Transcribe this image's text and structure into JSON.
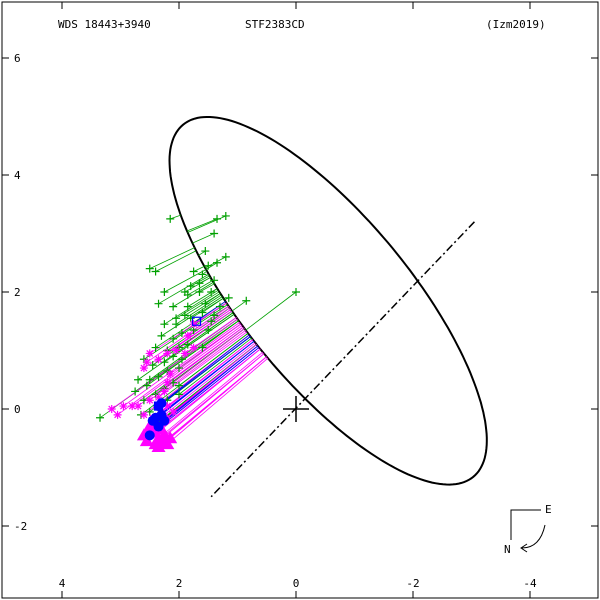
{
  "header": {
    "wds_id": "WDS 18443+3940",
    "discoverer": "STF2383CD",
    "reference": "(Izm2019)"
  },
  "compass": {
    "east_label": "E",
    "north_label": "N"
  },
  "colors": {
    "orbit": "#000000",
    "micrometer": "#00a000",
    "speckle": "#ff00ff",
    "interferometric": "#0000ff",
    "axes": "#000000"
  },
  "chart_data": {
    "type": "scatter",
    "title": "",
    "xlabel": "",
    "ylabel": "",
    "xlim": [
      -5.0,
      5.0
    ],
    "ylim": [
      -3.0,
      6.8
    ],
    "x_ticks": [
      -4,
      -2,
      0,
      2,
      4
    ],
    "y_ticks": [
      -2,
      0,
      2,
      4,
      6
    ],
    "x_reversed": true,
    "primary": {
      "x": 0,
      "y": 0
    },
    "orbit_ellipse": {
      "description_points": "apparent orbit",
      "center": [
        -0.55,
        1.85
      ],
      "semi_axis_major": 3.9,
      "semi_axis_minor": 1.42,
      "rotation_deg": 50.5
    },
    "line_of_nodes": {
      "from": [
        -3.05,
        3.2
      ],
      "to": [
        1.45,
        -1.5
      ]
    },
    "series": [
      {
        "marker": "plus",
        "color": "#00a000",
        "points": [
          [
            1.2,
            3.3
          ],
          [
            1.35,
            3.25
          ],
          [
            1.4,
            3.0
          ],
          [
            2.15,
            3.25
          ],
          [
            1.55,
            2.7
          ],
          [
            1.2,
            2.6
          ],
          [
            1.35,
            2.5
          ],
          [
            1.5,
            2.45
          ],
          [
            1.6,
            2.3
          ],
          [
            1.75,
            2.35
          ],
          [
            2.5,
            2.4
          ],
          [
            2.4,
            2.35
          ],
          [
            1.8,
            2.1
          ],
          [
            1.9,
            2.0
          ],
          [
            1.65,
            2.15
          ],
          [
            1.4,
            2.2
          ],
          [
            1.45,
            2.0
          ],
          [
            1.65,
            2.0
          ],
          [
            1.85,
            1.95
          ],
          [
            2.25,
            2.0
          ],
          [
            2.35,
            1.8
          ],
          [
            1.85,
            1.75
          ],
          [
            1.55,
            1.8
          ],
          [
            1.6,
            1.65
          ],
          [
            1.8,
            1.55
          ],
          [
            1.9,
            1.6
          ],
          [
            2.05,
            1.45
          ],
          [
            2.25,
            1.45
          ],
          [
            1.45,
            1.5
          ],
          [
            1.5,
            1.35
          ],
          [
            1.75,
            1.35
          ],
          [
            1.95,
            1.3
          ],
          [
            2.1,
            1.2
          ],
          [
            2.3,
            1.25
          ],
          [
            1.6,
            1.05
          ],
          [
            1.85,
            1.1
          ],
          [
            2.0,
            1.05
          ],
          [
            2.2,
            1.0
          ],
          [
            2.4,
            1.05
          ],
          [
            2.1,
            0.9
          ],
          [
            2.25,
            0.8
          ],
          [
            2.45,
            0.75
          ],
          [
            2.6,
            0.85
          ],
          [
            2.0,
            0.7
          ],
          [
            2.2,
            0.65
          ],
          [
            2.35,
            0.55
          ],
          [
            2.5,
            0.5
          ],
          [
            2.55,
            0.4
          ],
          [
            2.7,
            0.5
          ],
          [
            2.1,
            0.45
          ],
          [
            2.25,
            0.35
          ],
          [
            2.4,
            0.25
          ],
          [
            2.6,
            0.15
          ],
          [
            2.75,
            0.3
          ],
          [
            2.2,
            0.15
          ],
          [
            2.35,
            0.05
          ],
          [
            2.5,
            -0.05
          ],
          [
            2.65,
            -0.1
          ],
          [
            3.35,
            -0.15
          ],
          [
            2.0,
            0.25
          ],
          [
            0.0,
            2.0
          ],
          [
            0.85,
            1.85
          ],
          [
            1.15,
            1.9
          ],
          [
            1.3,
            1.75
          ],
          [
            1.4,
            1.6
          ],
          [
            2.1,
            1.75
          ],
          [
            2.05,
            1.55
          ],
          [
            1.95,
            0.85
          ],
          [
            2.0,
            0.4
          ],
          [
            2.3,
            -0.2
          ],
          [
            2.45,
            -0.3
          ],
          [
            2.55,
            -0.4
          ]
        ]
      },
      {
        "marker": "asterisk",
        "color": "#ff00ff",
        "points": [
          [
            1.75,
            1.45
          ],
          [
            1.85,
            1.25
          ],
          [
            1.75,
            1.05
          ],
          [
            1.9,
            0.95
          ],
          [
            2.05,
            1.0
          ],
          [
            2.2,
            0.95
          ],
          [
            2.35,
            0.85
          ],
          [
            2.5,
            0.95
          ],
          [
            2.55,
            0.8
          ],
          [
            2.6,
            0.7
          ],
          [
            2.15,
            0.6
          ],
          [
            2.2,
            0.45
          ],
          [
            2.25,
            0.3
          ],
          [
            2.35,
            0.2
          ],
          [
            2.5,
            0.15
          ],
          [
            2.2,
            0.05
          ],
          [
            2.3,
            -0.05
          ],
          [
            2.45,
            -0.15
          ],
          [
            2.6,
            -0.1
          ],
          [
            2.7,
            0.05
          ],
          [
            2.8,
            0.05
          ],
          [
            2.95,
            0.05
          ],
          [
            3.05,
            -0.1
          ],
          [
            3.15,
            0.0
          ],
          [
            2.1,
            -0.05
          ],
          [
            2.2,
            -0.15
          ],
          [
            2.4,
            -0.4
          ]
        ]
      },
      {
        "marker": "triangle",
        "color": "#ff00ff",
        "points": [
          [
            2.15,
            -0.5
          ],
          [
            2.25,
            -0.45
          ],
          [
            2.35,
            -0.5
          ],
          [
            2.25,
            -0.55
          ],
          [
            2.4,
            -0.6
          ],
          [
            2.55,
            -0.55
          ],
          [
            2.3,
            -0.35
          ],
          [
            2.45,
            -0.4
          ],
          [
            2.35,
            -0.65
          ],
          [
            2.5,
            -0.3
          ],
          [
            2.2,
            -0.6
          ],
          [
            2.6,
            -0.45
          ]
        ]
      },
      {
        "marker": "circle",
        "color": "#0000ff",
        "points": [
          [
            2.3,
            0.1
          ],
          [
            2.35,
            0.05
          ],
          [
            2.3,
            -0.1
          ],
          [
            2.4,
            -0.15
          ],
          [
            2.35,
            -0.3
          ],
          [
            2.45,
            -0.2
          ],
          [
            2.25,
            -0.2
          ],
          [
            2.5,
            -0.45
          ]
        ]
      },
      {
        "marker": "square",
        "color": "#0000ff",
        "points": [
          [
            1.7,
            1.5
          ],
          [
            2.35,
            0.05
          ]
        ]
      }
    ]
  }
}
